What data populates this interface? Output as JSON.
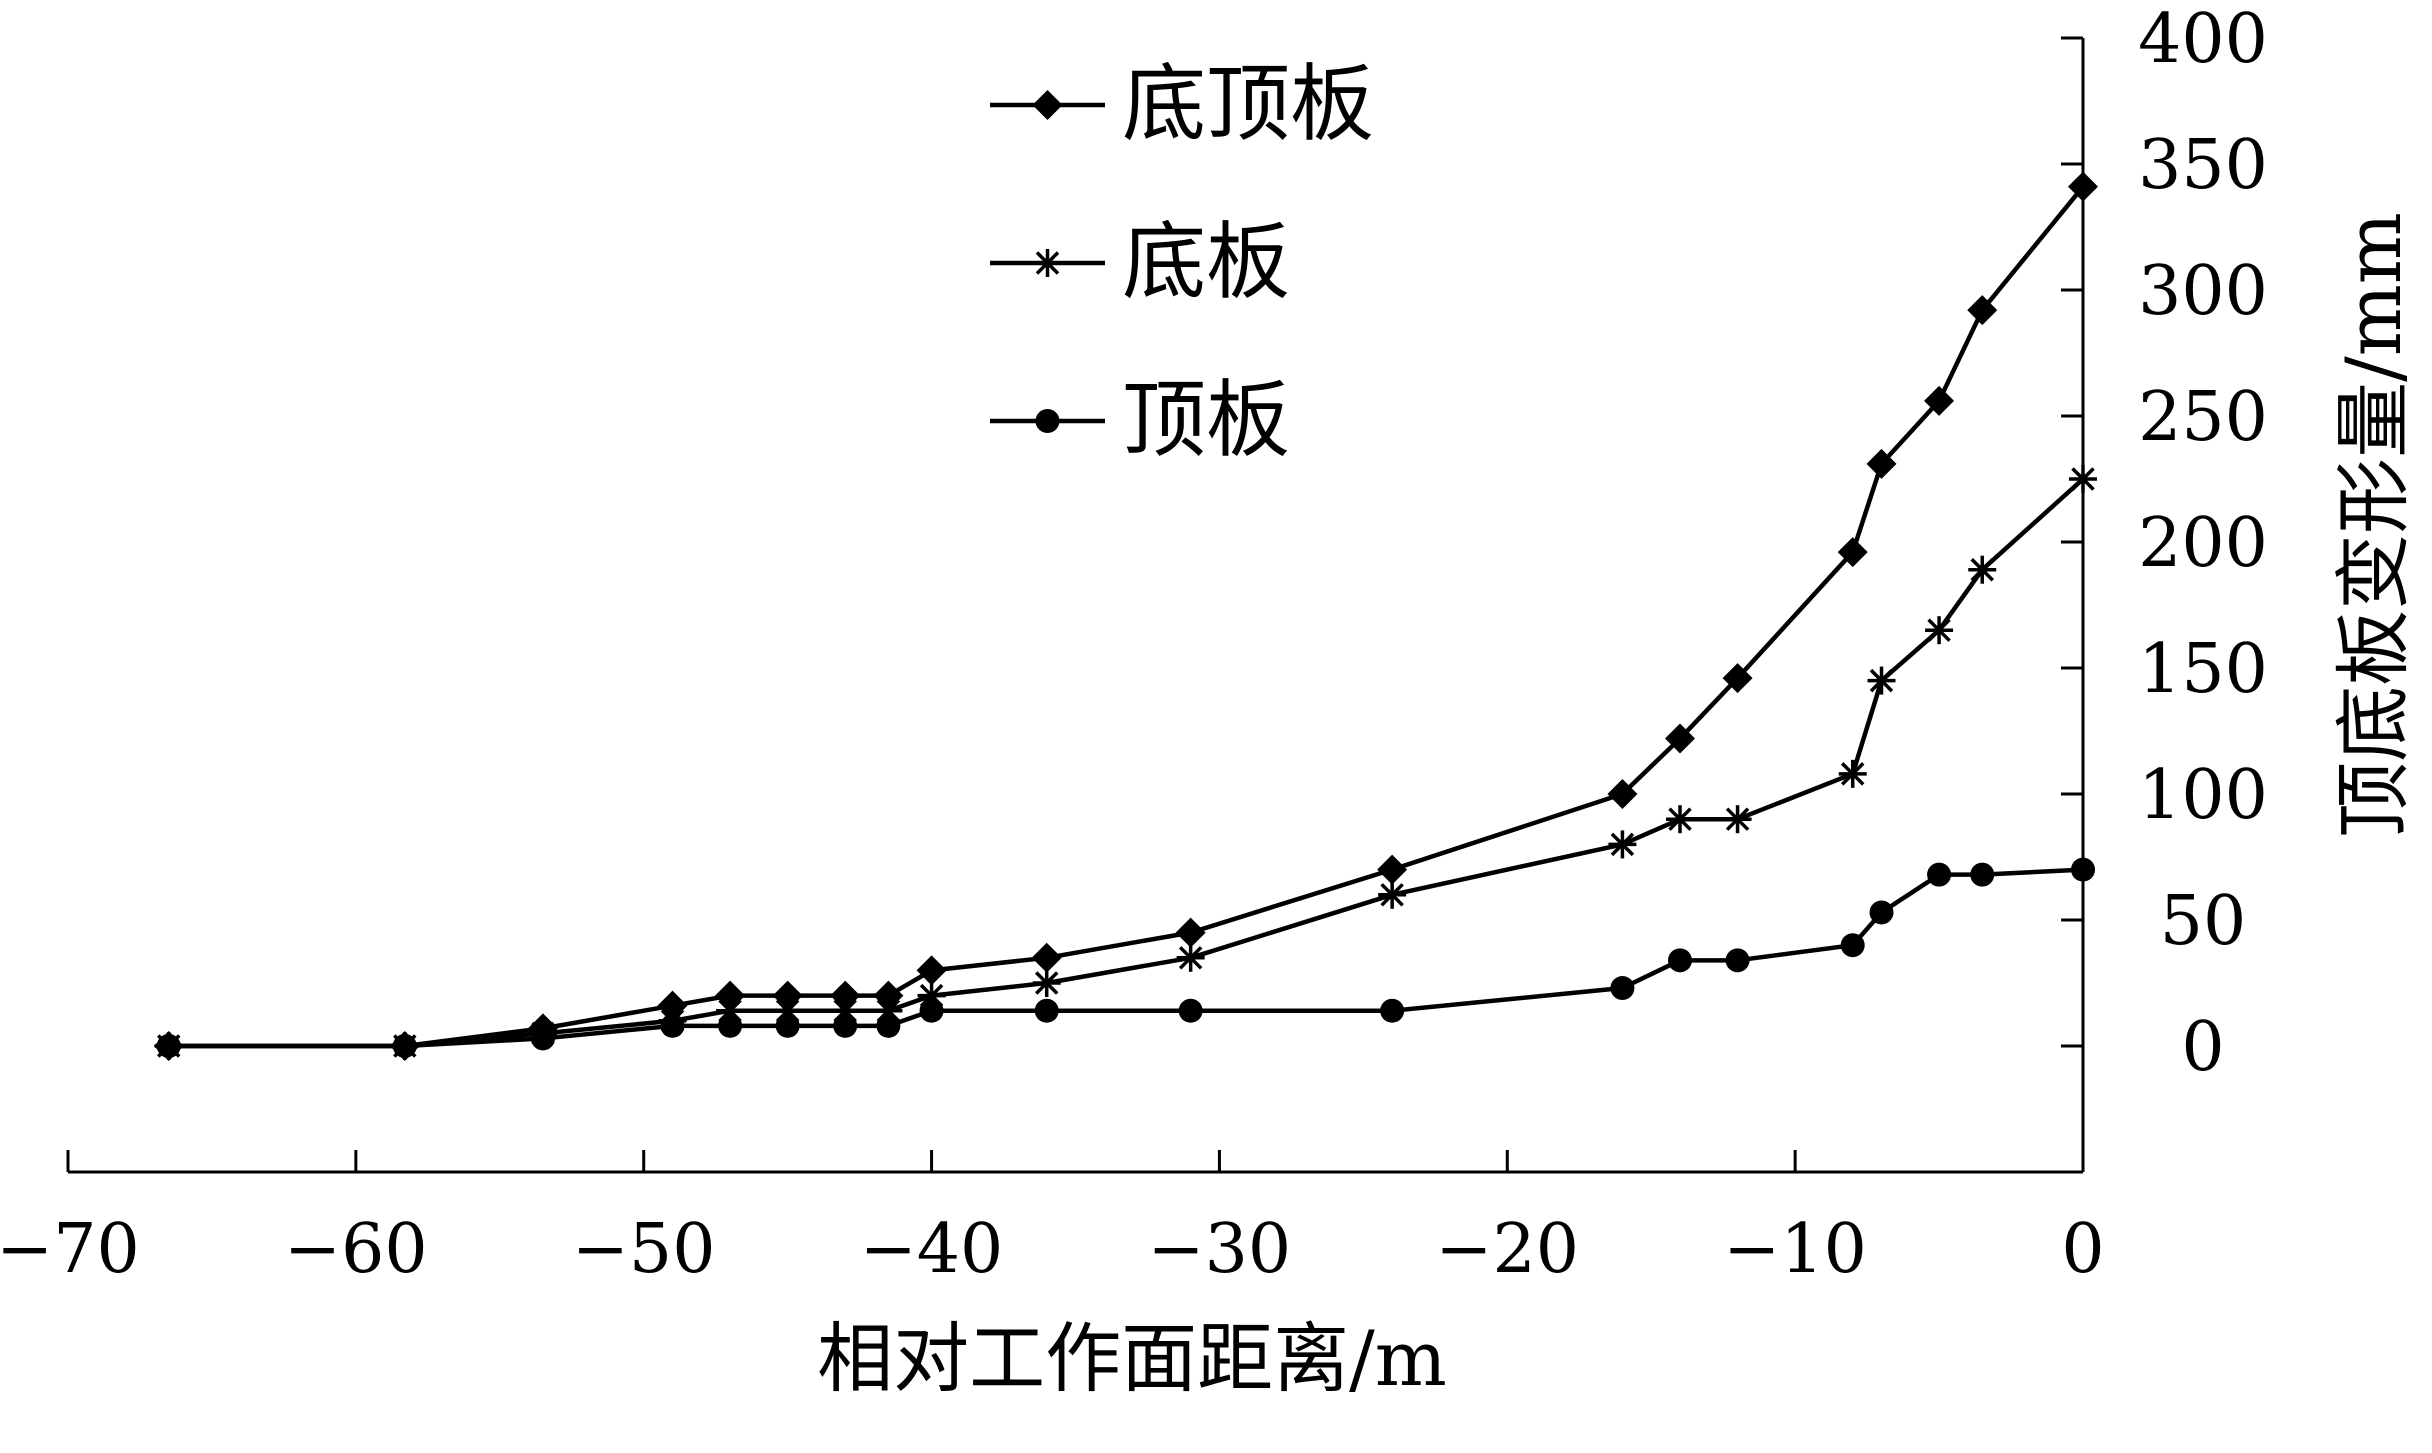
{
  "chart_data": {
    "type": "line",
    "xlabel": "相对工作面距离/m",
    "ylabel": "顶底板变形量/mm",
    "xlim": [
      -70,
      0
    ],
    "ylim": [
      -50,
      400
    ],
    "x_ticks": [
      -70,
      -60,
      -50,
      -40,
      -30,
      -20,
      -10,
      0
    ],
    "x_tick_labels": [
      "−70",
      "−60",
      "−50",
      "−40",
      "−30",
      "−20",
      "−10",
      "0"
    ],
    "y_ticks": [
      0,
      50,
      100,
      150,
      200,
      250,
      300,
      350,
      400
    ],
    "y_tick_labels": [
      "0",
      "50",
      "100",
      "150",
      "200",
      "250",
      "300",
      "350",
      "400"
    ],
    "grid": false,
    "legend_position": "top-center",
    "y_axis_side": "right",
    "series": [
      {
        "name": "底顶板",
        "marker": "diamond",
        "x": [
          -66.5,
          -58.3,
          -53.5,
          -49.0,
          -47.0,
          -45.0,
          -43.0,
          -41.5,
          -40.0,
          -36.0,
          -31.0,
          -24.0,
          -16.0,
          -14.0,
          -12.0,
          -8.0,
          -7.0,
          -5.0,
          -3.5,
          0
        ],
        "y": [
          0,
          0,
          7,
          16,
          20,
          20,
          20,
          20,
          30,
          35,
          45,
          70,
          100,
          122,
          146,
          196,
          231,
          256,
          292,
          341
        ]
      },
      {
        "name": "底板",
        "marker": "asterisk",
        "x": [
          -66.5,
          -58.3,
          -53.5,
          -49.0,
          -47.0,
          -45.0,
          -43.0,
          -41.5,
          -40.0,
          -36.0,
          -31.0,
          -24.0,
          -16.0,
          -14.0,
          -12.0,
          -8.0,
          -7.0,
          -5.0,
          -3.5,
          0
        ],
        "y": [
          0,
          0,
          5,
          10,
          14,
          14,
          14,
          14,
          20,
          25,
          35,
          60,
          80,
          90,
          90,
          108,
          145,
          165,
          189,
          225
        ]
      },
      {
        "name": "顶板",
        "marker": "circle",
        "x": [
          -66.5,
          -58.3,
          -53.5,
          -49.0,
          -47.0,
          -45.0,
          -43.0,
          -41.5,
          -40.0,
          -36.0,
          -31.0,
          -24.0,
          -16.0,
          -14.0,
          -12.0,
          -8.0,
          -7.0,
          -5.0,
          -3.5,
          0
        ],
        "y": [
          0,
          0,
          3,
          8,
          8,
          8,
          8,
          8,
          14,
          14,
          14,
          14,
          23,
          34,
          34,
          40,
          53,
          68,
          68,
          70
        ]
      }
    ]
  }
}
